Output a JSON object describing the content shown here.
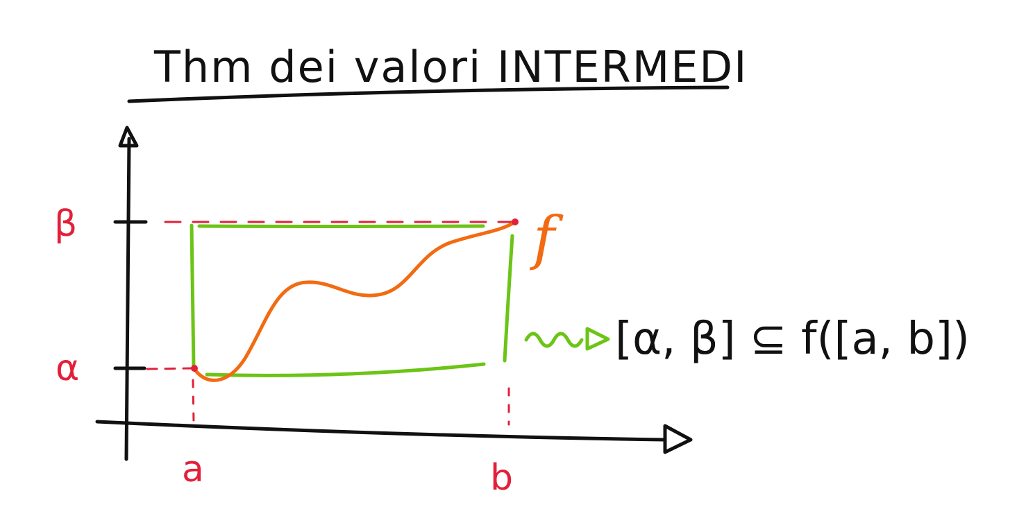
{
  "title": "Thm dei valori INTERMEDI",
  "labels": {
    "beta": "β",
    "alpha": "α",
    "a": "a",
    "b": "b",
    "f": "f"
  },
  "formula": "[α, β] ⊆ f([a, b])",
  "colors": {
    "ink": "#111111",
    "red": "#e2203a",
    "green": "#6cc417",
    "orange": "#f26b12"
  }
}
